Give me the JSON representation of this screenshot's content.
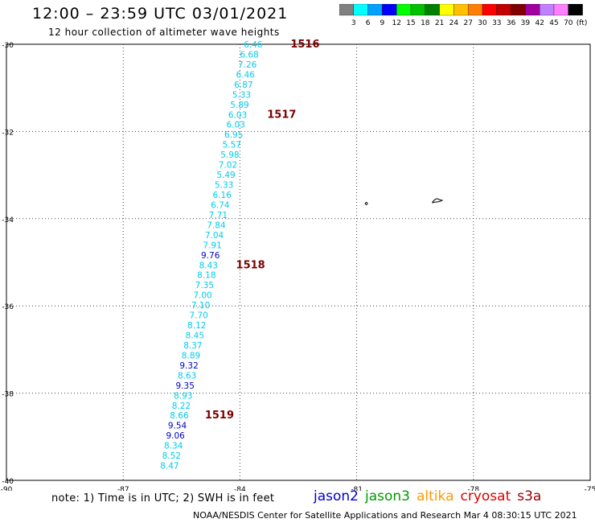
{
  "header": {
    "title": "12:00 – 23:59 UTC 03/01/2021",
    "subtitle": "12 hour collection of altimeter wave heights"
  },
  "colorbar": {
    "labels": [
      "3",
      "6",
      "9",
      "12",
      "15",
      "18",
      "21",
      "24",
      "27",
      "30",
      "33",
      "36",
      "39",
      "42",
      "45",
      "70"
    ],
    "colors": [
      "#808080",
      "#00ffff",
      "#00a0ff",
      "#0000ff",
      "#00ff00",
      "#00c000",
      "#008000",
      "#ffff00",
      "#ffc000",
      "#ff8000",
      "#ff0000",
      "#c00000",
      "#800000",
      "#a000a0",
      "#c080ff",
      "#ff80ff",
      "#000000"
    ],
    "unit": "(ft)"
  },
  "chart_data": {
    "type": "scatter",
    "title": "12:00 – 23:59 UTC 03/01/2021",
    "subtitle": "12 hour collection of altimeter wave heights",
    "xlim": [
      -90,
      -75
    ],
    "ylim": [
      -40,
      -30
    ],
    "x_ticks": [
      -90,
      -87,
      -84,
      -81,
      -78,
      -75
    ],
    "y_ticks": [
      -30,
      -32,
      -34,
      -36,
      -38,
      -40
    ],
    "grid": true,
    "points": [
      {
        "lon": -83.9,
        "lat": -30.0,
        "value": "6.46",
        "color": "#00ccee"
      },
      {
        "lon": -84.0,
        "lat": -30.23,
        "value": "6.68",
        "color": "#00ccee"
      },
      {
        "lon": -84.05,
        "lat": -30.46,
        "value": "7.26",
        "color": "#00ccee"
      },
      {
        "lon": -84.1,
        "lat": -30.69,
        "value": "6.46",
        "color": "#00ccee"
      },
      {
        "lon": -84.15,
        "lat": -30.92,
        "value": "6.87",
        "color": "#00ccee"
      },
      {
        "lon": -84.2,
        "lat": -31.15,
        "value": "5.33",
        "color": "#00ccee"
      },
      {
        "lon": -84.25,
        "lat": -31.38,
        "value": "5.89",
        "color": "#00ccee"
      },
      {
        "lon": -84.3,
        "lat": -31.61,
        "value": "6.03",
        "color": "#00ccee"
      },
      {
        "lon": -84.35,
        "lat": -31.84,
        "value": "6.03",
        "color": "#00ccee"
      },
      {
        "lon": -84.4,
        "lat": -32.07,
        "value": "6.95",
        "color": "#00ccee"
      },
      {
        "lon": -84.45,
        "lat": -32.3,
        "value": "5.57",
        "color": "#00ccee"
      },
      {
        "lon": -84.5,
        "lat": -32.53,
        "value": "5.98",
        "color": "#00ccee"
      },
      {
        "lon": -84.55,
        "lat": -32.76,
        "value": "7.02",
        "color": "#00ccee"
      },
      {
        "lon": -84.6,
        "lat": -32.99,
        "value": "5.49",
        "color": "#00ccee"
      },
      {
        "lon": -84.65,
        "lat": -33.22,
        "value": "5.33",
        "color": "#00ccee"
      },
      {
        "lon": -84.7,
        "lat": -33.45,
        "value": "6.16",
        "color": "#00ccee"
      },
      {
        "lon": -84.75,
        "lat": -33.68,
        "value": "6.74",
        "color": "#00ccee"
      },
      {
        "lon": -84.8,
        "lat": -33.91,
        "value": "7.71",
        "color": "#00ccee"
      },
      {
        "lon": -84.85,
        "lat": -34.14,
        "value": "7.84",
        "color": "#00ccee"
      },
      {
        "lon": -84.9,
        "lat": -34.37,
        "value": "7.04",
        "color": "#00ccee"
      },
      {
        "lon": -84.95,
        "lat": -34.6,
        "value": "7.91",
        "color": "#00ccee"
      },
      {
        "lon": -85.0,
        "lat": -34.83,
        "value": "9.76",
        "color": "#0000cc"
      },
      {
        "lon": -85.05,
        "lat": -35.06,
        "value": "8.43",
        "color": "#00ccee"
      },
      {
        "lon": -85.1,
        "lat": -35.29,
        "value": "8.18",
        "color": "#00ccee"
      },
      {
        "lon": -85.15,
        "lat": -35.52,
        "value": "7.35",
        "color": "#00ccee"
      },
      {
        "lon": -85.2,
        "lat": -35.75,
        "value": "7.00",
        "color": "#00ccee"
      },
      {
        "lon": -85.25,
        "lat": -35.98,
        "value": "7.10",
        "color": "#00ccee"
      },
      {
        "lon": -85.3,
        "lat": -36.21,
        "value": "7.70",
        "color": "#00ccee"
      },
      {
        "lon": -85.35,
        "lat": -36.44,
        "value": "8.12",
        "color": "#00ccee"
      },
      {
        "lon": -85.4,
        "lat": -36.67,
        "value": "8.45",
        "color": "#00ccee"
      },
      {
        "lon": -85.45,
        "lat": -36.9,
        "value": "8.37",
        "color": "#00ccee"
      },
      {
        "lon": -85.5,
        "lat": -37.13,
        "value": "8.89",
        "color": "#00ccee"
      },
      {
        "lon": -85.55,
        "lat": -37.36,
        "value": "9.32",
        "color": "#0000cc"
      },
      {
        "lon": -85.6,
        "lat": -37.59,
        "value": "8.63",
        "color": "#00ccee"
      },
      {
        "lon": -85.65,
        "lat": -37.82,
        "value": "9.35",
        "color": "#0000cc"
      },
      {
        "lon": -85.7,
        "lat": -38.05,
        "value": "8.93",
        "color": "#00ccee"
      },
      {
        "lon": -85.75,
        "lat": -38.28,
        "value": "8.22",
        "color": "#00ccee"
      },
      {
        "lon": -85.8,
        "lat": -38.51,
        "value": "8.66",
        "color": "#00ccee"
      },
      {
        "lon": -85.85,
        "lat": -38.74,
        "value": "9.54",
        "color": "#0000cc"
      },
      {
        "lon": -85.9,
        "lat": -38.97,
        "value": "9.06",
        "color": "#0000cc"
      },
      {
        "lon": -85.95,
        "lat": -39.2,
        "value": "8.34",
        "color": "#00ccee"
      },
      {
        "lon": -86.0,
        "lat": -39.43,
        "value": "8.52",
        "color": "#00ccee"
      },
      {
        "lon": -86.05,
        "lat": -39.66,
        "value": "8.47",
        "color": "#00ccee"
      }
    ],
    "time_labels": [
      {
        "lon": -82.7,
        "lat": -30.0,
        "text": "1516"
      },
      {
        "lon": -83.3,
        "lat": -31.61,
        "text": "1517"
      },
      {
        "lon": -84.1,
        "lat": -35.06,
        "text": "1518"
      },
      {
        "lon": -84.9,
        "lat": -38.51,
        "text": "1519"
      }
    ],
    "time_label_color": "#7a0000"
  },
  "notes": {
    "text": "note:  1) Time is in UTC;  2) SWH is in feet",
    "credit": "NOAA/NESDIS Center for Satellite Applications and Research    Mar  4 08:30:15 UTC 2021"
  },
  "satellites": [
    {
      "name": "jason2",
      "color": "#0000cc"
    },
    {
      "name": "jason3",
      "color": "#009900"
    },
    {
      "name": "altika",
      "color": "#ff9900"
    },
    {
      "name": "cryosat",
      "color": "#dd0000"
    },
    {
      "name": "s3a",
      "color": "#990000"
    }
  ]
}
